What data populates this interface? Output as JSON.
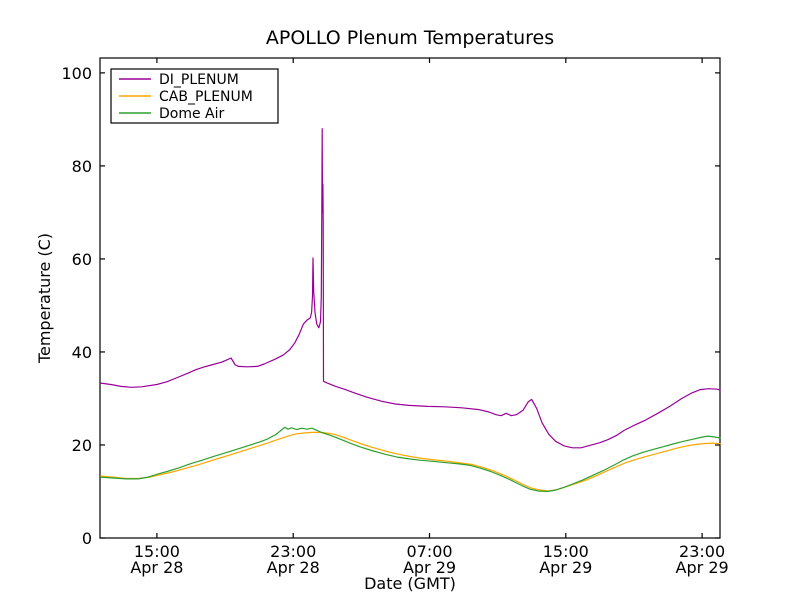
{
  "figure": {
    "background_color": "#ffffff",
    "axis_color": "#000000"
  },
  "chart_data": {
    "type": "line",
    "title": "APOLLO Plenum Temperatures",
    "xlabel": "Date (GMT)",
    "ylabel": "Temperature (C)",
    "grid": false,
    "legend_position": "upper left",
    "x_unit": "hours since Apr 28 00:00 GMT",
    "xlim": [
      11.66,
      48.05
    ],
    "ylim": [
      0,
      103.2
    ],
    "yticks": [
      0,
      20,
      40,
      60,
      80,
      100
    ],
    "xticks": [
      {
        "value": 15,
        "time": "15:00",
        "date": "Apr 28"
      },
      {
        "value": 23,
        "time": "23:00",
        "date": "Apr 28"
      },
      {
        "value": 31,
        "time": "07:00",
        "date": "Apr 29"
      },
      {
        "value": 39,
        "time": "15:00",
        "date": "Apr 29"
      },
      {
        "value": 47,
        "time": "23:00",
        "date": "Apr 29"
      }
    ],
    "series": [
      {
        "name": "DI_PLENUM",
        "color": "#990099",
        "points": [
          [
            11.7,
            33.3
          ],
          [
            12.3,
            33.0
          ],
          [
            12.9,
            32.6
          ],
          [
            13.5,
            32.4
          ],
          [
            14.1,
            32.5
          ],
          [
            15.0,
            33.0
          ],
          [
            15.6,
            33.6
          ],
          [
            16.2,
            34.5
          ],
          [
            16.8,
            35.4
          ],
          [
            17.3,
            36.2
          ],
          [
            17.8,
            36.8
          ],
          [
            18.3,
            37.3
          ],
          [
            18.8,
            37.8
          ],
          [
            19.1,
            38.3
          ],
          [
            19.35,
            38.7
          ],
          [
            19.6,
            37.2
          ],
          [
            19.8,
            36.9
          ],
          [
            20.3,
            36.8
          ],
          [
            20.9,
            36.9
          ],
          [
            21.3,
            37.4
          ],
          [
            21.9,
            38.4
          ],
          [
            22.4,
            39.3
          ],
          [
            22.8,
            40.5
          ],
          [
            23.1,
            42.0
          ],
          [
            23.35,
            43.8
          ],
          [
            23.6,
            46.0
          ],
          [
            23.8,
            46.8
          ],
          [
            24.0,
            47.3
          ],
          [
            24.08,
            48.5
          ],
          [
            24.13,
            52.0
          ],
          [
            24.16,
            60.2
          ],
          [
            24.2,
            53.0
          ],
          [
            24.28,
            48.5
          ],
          [
            24.38,
            46.0
          ],
          [
            24.5,
            45.2
          ],
          [
            24.6,
            46.5
          ],
          [
            24.65,
            52.0
          ],
          [
            24.68,
            70.0
          ],
          [
            24.7,
            88.0
          ],
          [
            24.72,
            70.0
          ],
          [
            24.74,
            76.0
          ],
          [
            24.76,
            68.0
          ],
          [
            24.78,
            33.7
          ],
          [
            25.0,
            33.3
          ],
          [
            25.5,
            32.6
          ],
          [
            26.0,
            32.0
          ],
          [
            26.6,
            31.2
          ],
          [
            27.3,
            30.3
          ],
          [
            28.2,
            29.4
          ],
          [
            29.0,
            28.8
          ],
          [
            29.8,
            28.5
          ],
          [
            30.9,
            28.3
          ],
          [
            31.9,
            28.2
          ],
          [
            32.9,
            28.0
          ],
          [
            33.9,
            27.6
          ],
          [
            34.5,
            27.1
          ],
          [
            34.9,
            26.5
          ],
          [
            35.2,
            26.3
          ],
          [
            35.5,
            26.8
          ],
          [
            35.8,
            26.3
          ],
          [
            36.1,
            26.5
          ],
          [
            36.5,
            27.5
          ],
          [
            36.8,
            29.3
          ],
          [
            37.0,
            29.8
          ],
          [
            37.3,
            27.8
          ],
          [
            37.6,
            24.8
          ],
          [
            38.0,
            22.3
          ],
          [
            38.4,
            20.8
          ],
          [
            38.9,
            19.8
          ],
          [
            39.4,
            19.4
          ],
          [
            39.9,
            19.4
          ],
          [
            40.4,
            19.9
          ],
          [
            41.0,
            20.5
          ],
          [
            41.5,
            21.2
          ],
          [
            42.0,
            22.1
          ],
          [
            42.4,
            23.1
          ],
          [
            43.0,
            24.2
          ],
          [
            43.7,
            25.4
          ],
          [
            44.4,
            26.8
          ],
          [
            45.1,
            28.3
          ],
          [
            45.8,
            30.0
          ],
          [
            46.4,
            31.2
          ],
          [
            46.9,
            31.9
          ],
          [
            47.4,
            32.1
          ],
          [
            47.9,
            32.0
          ],
          [
            48.05,
            31.8
          ]
        ]
      },
      {
        "name": "CAB_PLENUM",
        "color": "#FFA500",
        "points": [
          [
            11.7,
            13.3
          ],
          [
            12.4,
            13.1
          ],
          [
            13.2,
            12.8
          ],
          [
            13.9,
            12.8
          ],
          [
            14.6,
            13.1
          ],
          [
            15.2,
            13.6
          ],
          [
            15.9,
            14.2
          ],
          [
            16.6,
            14.9
          ],
          [
            17.3,
            15.6
          ],
          [
            18.0,
            16.4
          ],
          [
            18.7,
            17.2
          ],
          [
            19.4,
            18.0
          ],
          [
            20.1,
            18.8
          ],
          [
            20.8,
            19.6
          ],
          [
            21.5,
            20.4
          ],
          [
            22.1,
            21.2
          ],
          [
            22.7,
            21.9
          ],
          [
            23.2,
            22.4
          ],
          [
            23.7,
            22.6
          ],
          [
            24.1,
            22.7
          ],
          [
            24.5,
            22.7
          ],
          [
            24.9,
            22.6
          ],
          [
            25.4,
            22.3
          ],
          [
            25.9,
            21.7
          ],
          [
            26.5,
            20.9
          ],
          [
            27.1,
            20.1
          ],
          [
            27.8,
            19.3
          ],
          [
            28.5,
            18.6
          ],
          [
            29.2,
            18.0
          ],
          [
            29.9,
            17.5
          ],
          [
            30.6,
            17.1
          ],
          [
            31.3,
            16.8
          ],
          [
            32.1,
            16.5
          ],
          [
            32.9,
            16.1
          ],
          [
            33.5,
            15.8
          ],
          [
            34.1,
            15.2
          ],
          [
            34.7,
            14.5
          ],
          [
            35.3,
            13.6
          ],
          [
            35.9,
            12.6
          ],
          [
            36.5,
            11.5
          ],
          [
            37.0,
            10.7
          ],
          [
            37.5,
            10.3
          ],
          [
            38.0,
            10.1
          ],
          [
            38.5,
            10.4
          ],
          [
            39.0,
            11.0
          ],
          [
            39.6,
            11.7
          ],
          [
            40.2,
            12.5
          ],
          [
            40.8,
            13.4
          ],
          [
            41.4,
            14.4
          ],
          [
            42.0,
            15.4
          ],
          [
            42.6,
            16.3
          ],
          [
            43.2,
            17.0
          ],
          [
            43.8,
            17.6
          ],
          [
            44.4,
            18.2
          ],
          [
            45.0,
            18.8
          ],
          [
            45.6,
            19.4
          ],
          [
            46.1,
            19.8
          ],
          [
            46.6,
            20.1
          ],
          [
            47.1,
            20.3
          ],
          [
            47.6,
            20.4
          ],
          [
            48.05,
            20.3
          ]
        ]
      },
      {
        "name": "Dome Air",
        "color": "#2CA02C",
        "points": [
          [
            11.7,
            13.1
          ],
          [
            12.4,
            12.9
          ],
          [
            13.2,
            12.7
          ],
          [
            13.9,
            12.7
          ],
          [
            14.5,
            13.1
          ],
          [
            15.0,
            13.7
          ],
          [
            15.6,
            14.3
          ],
          [
            16.3,
            15.1
          ],
          [
            17.0,
            16.0
          ],
          [
            17.7,
            16.8
          ],
          [
            18.4,
            17.6
          ],
          [
            19.1,
            18.4
          ],
          [
            19.8,
            19.2
          ],
          [
            20.4,
            19.9
          ],
          [
            21.0,
            20.6
          ],
          [
            21.5,
            21.3
          ],
          [
            22.0,
            22.3
          ],
          [
            22.3,
            23.2
          ],
          [
            22.5,
            23.8
          ],
          [
            22.7,
            23.4
          ],
          [
            22.9,
            23.7
          ],
          [
            23.2,
            23.3
          ],
          [
            23.5,
            23.6
          ],
          [
            23.8,
            23.4
          ],
          [
            24.1,
            23.6
          ],
          [
            24.35,
            23.2
          ],
          [
            24.6,
            22.8
          ],
          [
            24.9,
            22.4
          ],
          [
            25.3,
            21.9
          ],
          [
            25.8,
            21.2
          ],
          [
            26.4,
            20.3
          ],
          [
            27.0,
            19.5
          ],
          [
            27.7,
            18.7
          ],
          [
            28.4,
            18.0
          ],
          [
            29.1,
            17.4
          ],
          [
            29.8,
            17.0
          ],
          [
            30.5,
            16.7
          ],
          [
            31.2,
            16.5
          ],
          [
            32.0,
            16.2
          ],
          [
            32.8,
            15.9
          ],
          [
            33.4,
            15.6
          ],
          [
            34.0,
            15.0
          ],
          [
            34.6,
            14.3
          ],
          [
            35.2,
            13.4
          ],
          [
            35.8,
            12.4
          ],
          [
            36.4,
            11.3
          ],
          [
            36.9,
            10.5
          ],
          [
            37.4,
            10.1
          ],
          [
            37.9,
            10.0
          ],
          [
            38.4,
            10.3
          ],
          [
            38.9,
            10.9
          ],
          [
            39.4,
            11.6
          ],
          [
            40.0,
            12.5
          ],
          [
            40.6,
            13.5
          ],
          [
            41.2,
            14.5
          ],
          [
            41.8,
            15.6
          ],
          [
            42.4,
            16.8
          ],
          [
            42.9,
            17.6
          ],
          [
            43.5,
            18.4
          ],
          [
            44.1,
            19.0
          ],
          [
            44.7,
            19.6
          ],
          [
            45.3,
            20.2
          ],
          [
            45.9,
            20.8
          ],
          [
            46.4,
            21.2
          ],
          [
            46.9,
            21.6
          ],
          [
            47.3,
            21.9
          ],
          [
            47.6,
            21.8
          ],
          [
            47.9,
            21.6
          ],
          [
            48.05,
            21.5
          ]
        ]
      }
    ]
  }
}
